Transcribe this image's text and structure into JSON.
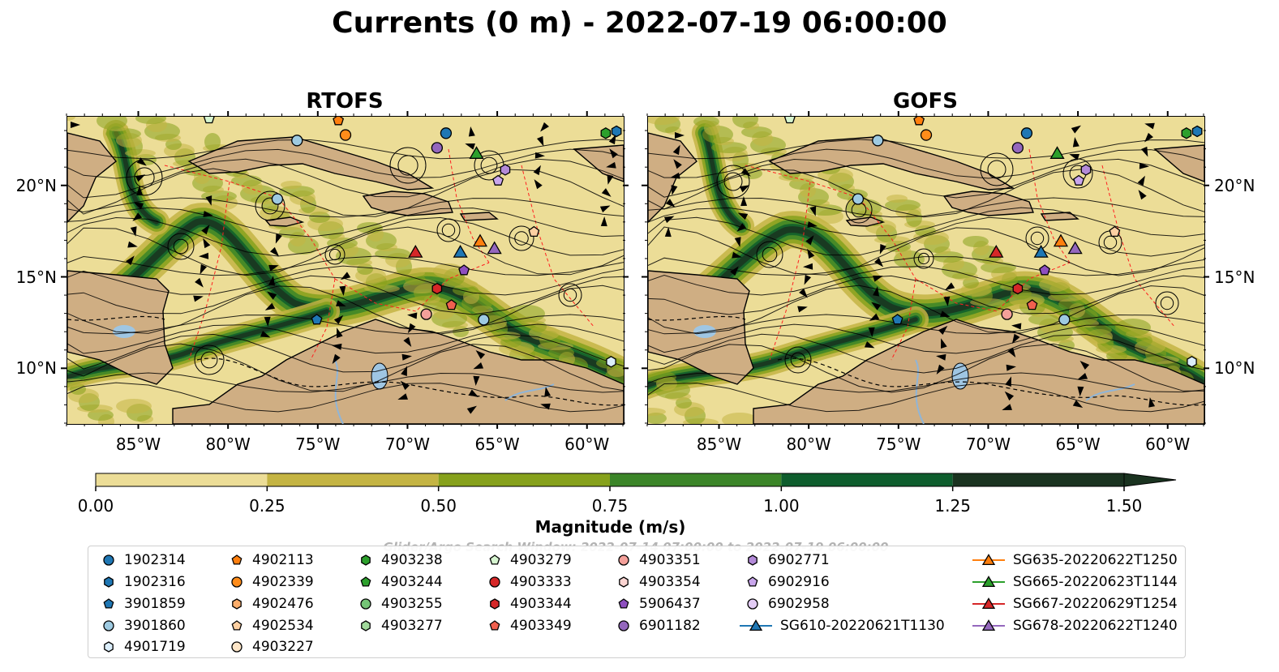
{
  "title": "Currents (0 m) - 2022-07-19 06:00:00",
  "panels": [
    {
      "title": "RTOFS"
    },
    {
      "title": "GOFS"
    }
  ],
  "axes": {
    "lon_ticks": [
      "85°W",
      "80°W",
      "75°W",
      "70°W",
      "65°W",
      "60°W"
    ],
    "lat_ticks": [
      "20°N",
      "15°N",
      "10°N"
    ]
  },
  "colorbar": {
    "title": "Magnitude (m/s)",
    "ticks": [
      "0.00",
      "0.25",
      "0.50",
      "0.75",
      "1.00",
      "1.25",
      "1.50"
    ],
    "colors": [
      "#ecdd97",
      "#c4b443",
      "#86a11c",
      "#3b8528",
      "#0e5d2d",
      "#1a3320"
    ],
    "extend": "max"
  },
  "search_window": "Glider/Argo Search Window: 2022-07-14 07:00:00 to 2022-07-19 06:00:00",
  "colors": {
    "land": "#cfae83",
    "ocean_low": "#ecdd97",
    "lake": "#9fc6e3",
    "eez_line": "#ff2020"
  },
  "legend": {
    "items": [
      {
        "label": "1902314",
        "marker": "circle",
        "color": "#1f77b4"
      },
      {
        "label": "1902316",
        "marker": "hexagon",
        "color": "#1f77b4"
      },
      {
        "label": "3901859",
        "marker": "pentagon",
        "color": "#1f77b4"
      },
      {
        "label": "3901860",
        "marker": "circle",
        "color": "#9ecae1"
      },
      {
        "label": "4901719",
        "marker": "hexagon",
        "color": "#dbeefb"
      },
      {
        "label": "4902113",
        "marker": "pentagon",
        "color": "#ff7f0e"
      },
      {
        "label": "4902339",
        "marker": "circle",
        "color": "#ff8c1a"
      },
      {
        "label": "4902476",
        "marker": "hexagon",
        "color": "#fdae6b"
      },
      {
        "label": "4902534",
        "marker": "pentagon",
        "color": "#fdd0a2"
      },
      {
        "label": "4903227",
        "marker": "circle",
        "color": "#fee6c8"
      },
      {
        "label": "4903238",
        "marker": "hexagon",
        "color": "#2ca02c"
      },
      {
        "label": "4903244",
        "marker": "pentagon",
        "color": "#2ca02c"
      },
      {
        "label": "4903255",
        "marker": "circle",
        "color": "#74c476"
      },
      {
        "label": "4903277",
        "marker": "hexagon",
        "color": "#a1d99b"
      },
      {
        "label": "4903279",
        "marker": "pentagon",
        "color": "#d6f5d0"
      },
      {
        "label": "4903333",
        "marker": "circle",
        "color": "#d62728"
      },
      {
        "label": "4903344",
        "marker": "hexagon",
        "color": "#d62728"
      },
      {
        "label": "4903349",
        "marker": "pentagon",
        "color": "#f0604f"
      },
      {
        "label": "4903351",
        "marker": "circle",
        "color": "#f4a09a"
      },
      {
        "label": "4903354",
        "marker": "hexagon",
        "color": "#fcd5d2"
      },
      {
        "label": "5906437",
        "marker": "pentagon",
        "color": "#8e4fbf"
      },
      {
        "label": "6901182",
        "marker": "circle",
        "color": "#9467bd"
      },
      {
        "label": "6902771",
        "marker": "hexagon",
        "color": "#b38ad8"
      },
      {
        "label": "6902916",
        "marker": "pentagon",
        "color": "#c9a6ec"
      },
      {
        "label": "6902958",
        "marker": "circle",
        "color": "#e3ccf5"
      },
      {
        "label": "SG610-20220621T1130",
        "marker": "triangle-line",
        "color": "#1f77b4"
      },
      {
        "label": "SG635-20220622T1250",
        "marker": "triangle-line",
        "color": "#ff7f0e"
      },
      {
        "label": "SG665-20220623T1144",
        "marker": "triangle-line",
        "color": "#2ca02c"
      },
      {
        "label": "SG667-20220629T1254",
        "marker": "triangle-line",
        "color": "#d62728"
      },
      {
        "label": "SG678-20220622T1240",
        "marker": "triangle-line",
        "color": "#9467bd"
      }
    ]
  }
}
